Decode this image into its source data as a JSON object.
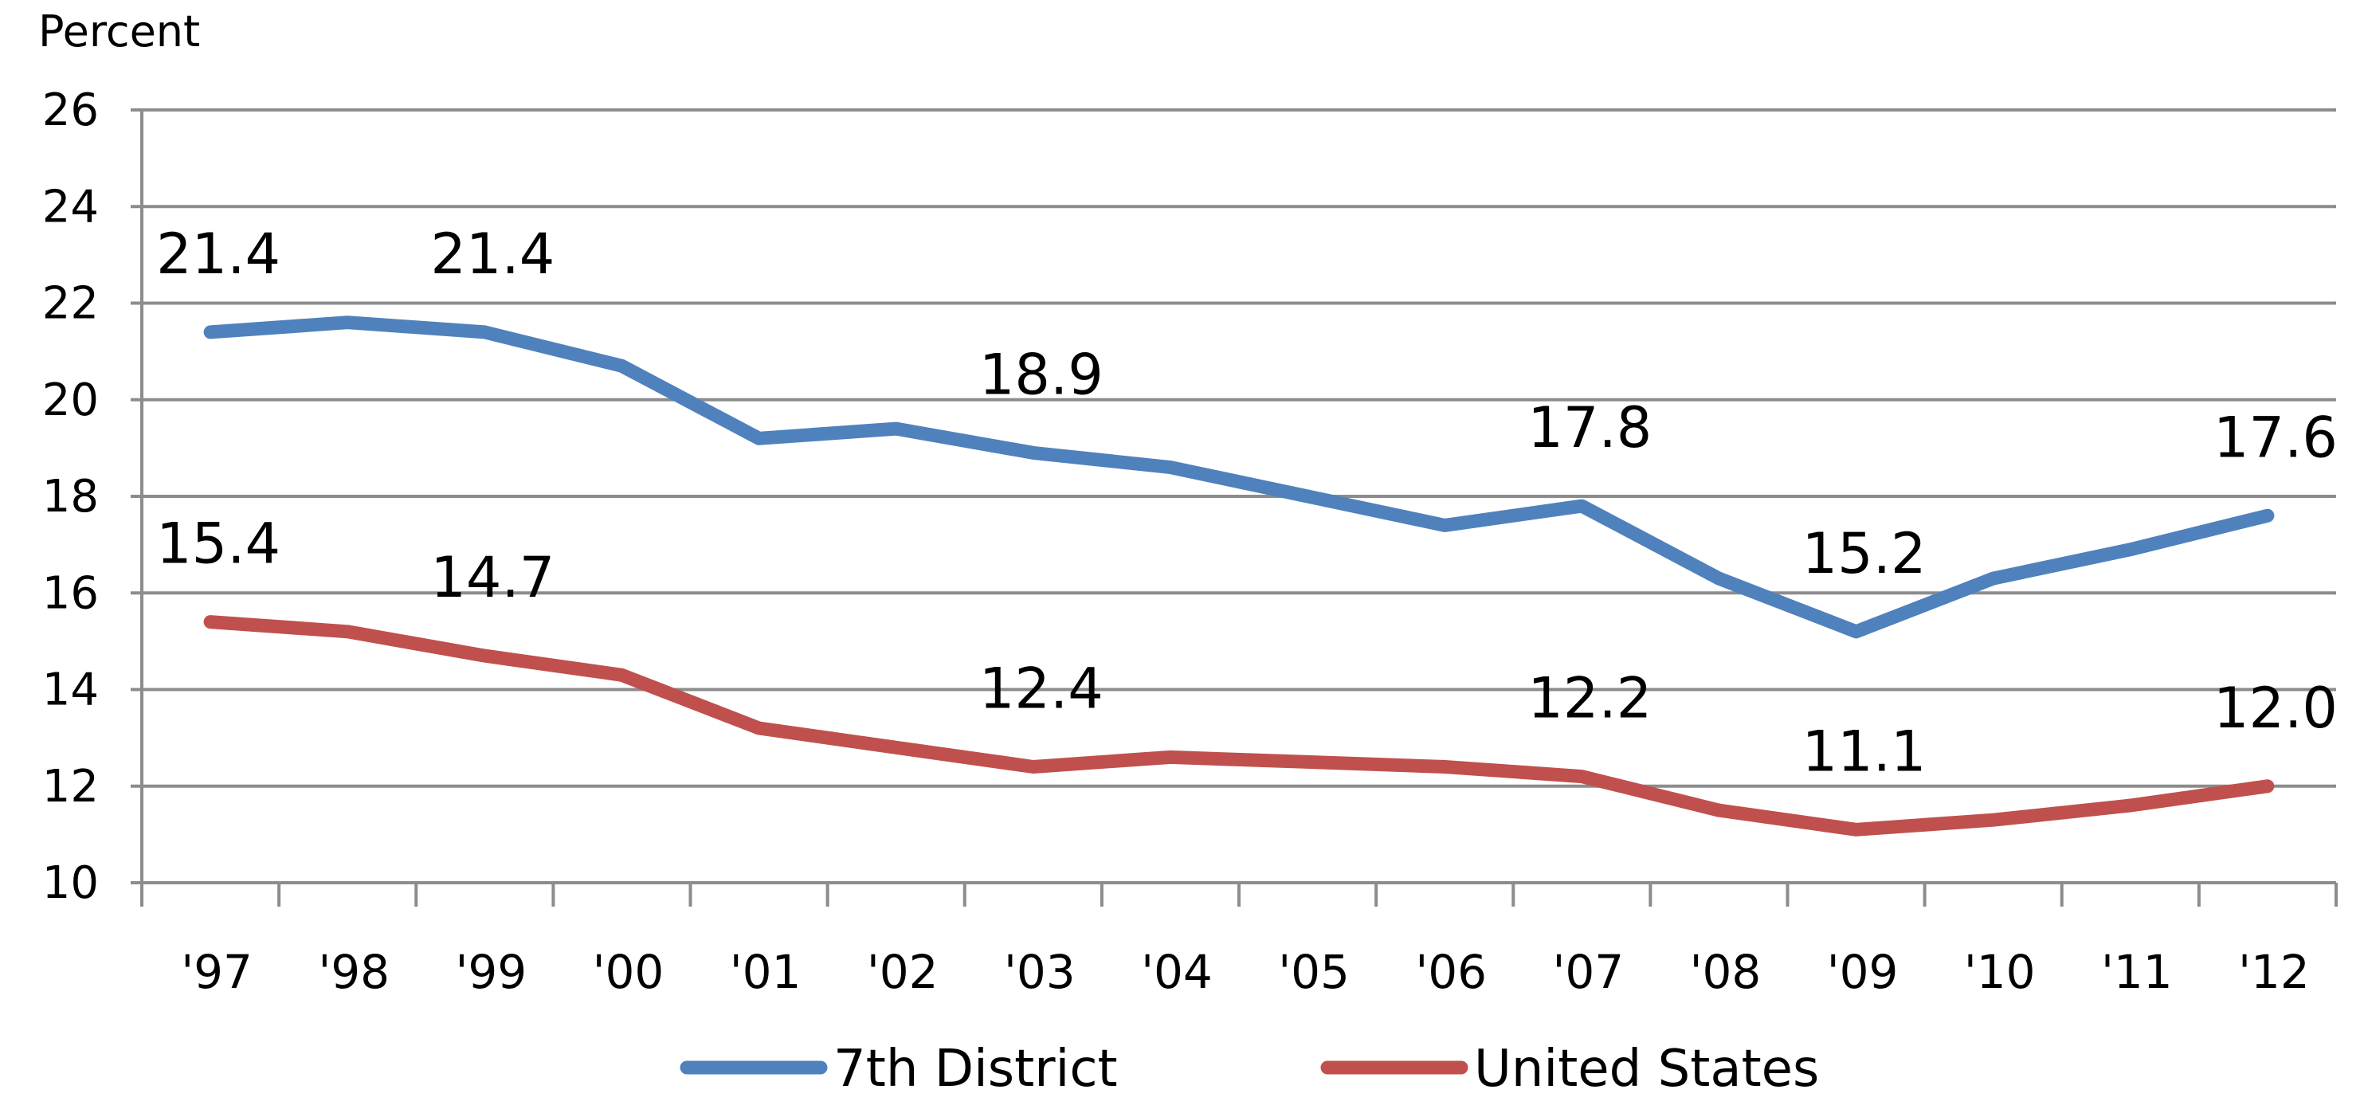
{
  "chart_data": {
    "type": "line",
    "title": "",
    "xlabel": "",
    "ylabel": "Percent",
    "ylim": [
      10,
      26
    ],
    "yticks": [
      10,
      12,
      14,
      16,
      18,
      20,
      22,
      24,
      26
    ],
    "grid": true,
    "legend_position": "bottom",
    "categories": [
      "'97",
      "'98",
      "'99",
      "'00",
      "'01",
      "'02",
      "'03",
      "'04",
      "'05",
      "'06",
      "'07",
      "'08",
      "'09",
      "'10",
      "'11",
      "'12"
    ],
    "series": [
      {
        "name": "7th District",
        "color": "#4F81BD",
        "values": [
          21.4,
          21.6,
          21.4,
          20.7,
          19.2,
          19.4,
          18.9,
          18.6,
          18.0,
          17.4,
          17.8,
          16.3,
          15.2,
          16.3,
          16.9,
          17.6
        ],
        "data_labels": [
          {
            "index": 0,
            "text": "21.4"
          },
          {
            "index": 2,
            "text": "21.4"
          },
          {
            "index": 6,
            "text": "18.9"
          },
          {
            "index": 10,
            "text": "17.8"
          },
          {
            "index": 12,
            "text": "15.2"
          },
          {
            "index": 15,
            "text": "17.6"
          }
        ]
      },
      {
        "name": "United States",
        "color": "#C0504D",
        "values": [
          15.4,
          15.2,
          14.7,
          14.3,
          13.2,
          12.8,
          12.4,
          12.6,
          12.5,
          12.4,
          12.2,
          11.5,
          11.1,
          11.3,
          11.6,
          12.0
        ],
        "data_labels": [
          {
            "index": 0,
            "text": "15.4"
          },
          {
            "index": 2,
            "text": "14.7"
          },
          {
            "index": 6,
            "text": "12.4"
          },
          {
            "index": 10,
            "text": "12.2"
          },
          {
            "index": 12,
            "text": "11.1"
          },
          {
            "index": 15,
            "text": "12.0"
          }
        ]
      }
    ]
  }
}
